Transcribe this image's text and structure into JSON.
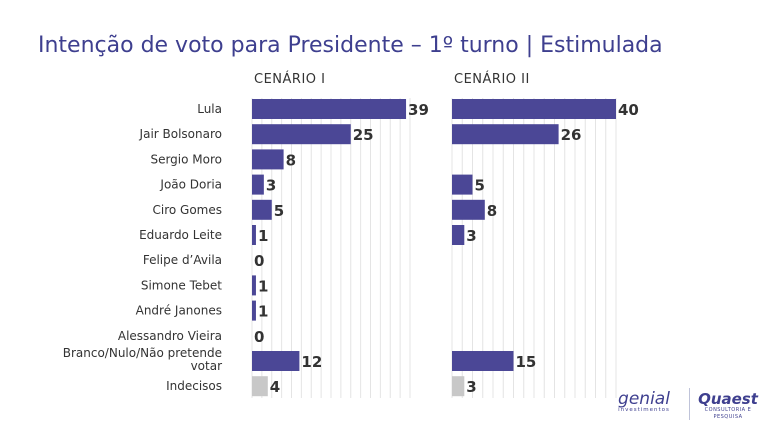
{
  "title": "Intenção de voto para Presidente – 1º turno | Estimulada",
  "colors": {
    "bar": "#4b4796",
    "bar_undecided": "#c8c8c8",
    "title": "#3e3f8f",
    "grid": "#e4e4e4"
  },
  "chart_data": [
    {
      "type": "bar",
      "orientation": "horizontal",
      "title": "CENÁRIO I",
      "categories": [
        "Lula",
        "Jair Bolsonaro",
        "Sergio Moro",
        "João Doria",
        "Ciro Gomes",
        "Eduardo Leite",
        "Felipe d’Avila",
        "Simone Tebet",
        "André Janones",
        "Alessandro Vieira",
        "Branco/Nulo/Não pretende votar",
        "Indecisos"
      ],
      "values": [
        39,
        25,
        8,
        3,
        5,
        1,
        0,
        1,
        1,
        0,
        12,
        4
      ],
      "xlim": [
        0,
        40
      ],
      "grid": true
    },
    {
      "type": "bar",
      "orientation": "horizontal",
      "title": "CENÁRIO II",
      "categories": [
        "Lula",
        "Jair Bolsonaro",
        "Sergio Moro",
        "João Doria",
        "Ciro Gomes",
        "Eduardo Leite",
        "Felipe d’Avila",
        "Simone Tebet",
        "André Janones",
        "Alessandro Vieira",
        "Branco/Nulo/Não pretende votar",
        "Indecisos"
      ],
      "values": [
        40,
        26,
        null,
        5,
        8,
        3,
        null,
        null,
        null,
        null,
        15,
        3
      ],
      "xlim": [
        0,
        40
      ],
      "grid": true
    }
  ],
  "logos": {
    "genial": {
      "name": "genial",
      "sub": "investimentos"
    },
    "quaest": {
      "name": "Quaest",
      "sub": "CONSULTORIA E PESQUISA"
    }
  }
}
